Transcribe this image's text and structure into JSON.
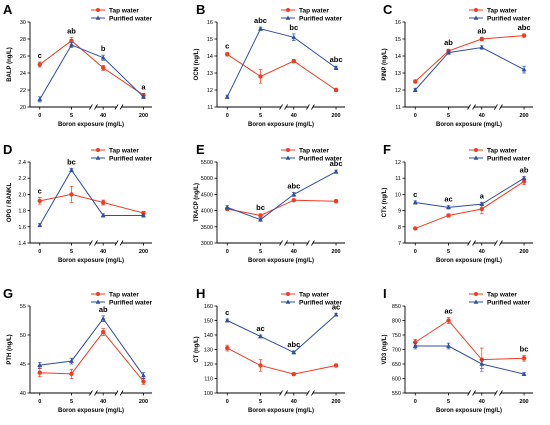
{
  "legend": {
    "tap": "Tap water",
    "purified": "Purified water"
  },
  "colors": {
    "tap": "#f03c22",
    "purified": "#2e4fa3",
    "axis": "#000000"
  },
  "chart_data": [
    {
      "type": "line",
      "panel": "A",
      "ylabel": "BALP (ng/L)",
      "xlabel": "Boron exposure (mg/L)",
      "categories": [
        "0",
        "5",
        "40",
        "200"
      ],
      "ylim": [
        20,
        30
      ],
      "yticks": [
        "20",
        "22",
        "24",
        "26",
        "28",
        "30"
      ],
      "series": [
        {
          "name": "Tap water",
          "values": [
            25,
            27.8,
            24.6,
            21.4
          ],
          "err": [
            0.3,
            0.4,
            0.3,
            0.2
          ],
          "marker": "circle"
        },
        {
          "name": "Purified water",
          "values": [
            20.9,
            27.3,
            25.8,
            21.2
          ],
          "err": [
            0.3,
            0.3,
            0.3,
            0.2
          ],
          "marker": "triangle"
        }
      ],
      "annotations": [
        {
          "index": 0,
          "text": "c"
        },
        {
          "index": 1,
          "text": "ab"
        },
        {
          "index": 2,
          "text": "b"
        },
        {
          "index": 3,
          "text": "a"
        }
      ]
    },
    {
      "type": "line",
      "panel": "B",
      "ylabel": "OCN (ng/L)",
      "xlabel": "Boron exposure (mg/L)",
      "categories": [
        "0",
        "5",
        "40",
        "200"
      ],
      "ylim": [
        11,
        16
      ],
      "yticks": [
        "11",
        "12",
        "13",
        "14",
        "15",
        "16"
      ],
      "series": [
        {
          "name": "Tap water",
          "values": [
            14.1,
            12.8,
            13.7,
            12.0
          ],
          "err": [
            0.1,
            0.4,
            0.1,
            0.1
          ],
          "marker": "circle"
        },
        {
          "name": "Purified water",
          "values": [
            11.6,
            15.6,
            15.1,
            13.3
          ],
          "err": [
            0.1,
            0.1,
            0.2,
            0.1
          ],
          "marker": "triangle"
        }
      ],
      "annotations": [
        {
          "index": 0,
          "text": "c"
        },
        {
          "index": 1,
          "text": "abc"
        },
        {
          "index": 2,
          "text": "bc"
        },
        {
          "index": 3,
          "text": "abc"
        }
      ]
    },
    {
      "type": "line",
      "panel": "C",
      "ylabel": "PINP (ng/L)",
      "xlabel": "Boron exposure (mg/L)",
      "categories": [
        "0",
        "5",
        "40",
        "200"
      ],
      "ylim": [
        11,
        16
      ],
      "yticks": [
        "11",
        "12",
        "13",
        "14",
        "15",
        "16"
      ],
      "series": [
        {
          "name": "Tap water",
          "values": [
            12.5,
            14.3,
            15.0,
            15.2
          ],
          "err": [
            0.1,
            0.1,
            0.1,
            0.1
          ],
          "marker": "circle"
        },
        {
          "name": "Purified water",
          "values": [
            12.0,
            14.2,
            14.5,
            13.2
          ],
          "err": [
            0.1,
            0.1,
            0.1,
            0.2
          ],
          "marker": "triangle"
        }
      ],
      "annotations": [
        {
          "index": 1,
          "text": "ab"
        },
        {
          "index": 2,
          "text": "ab"
        },
        {
          "index": 3,
          "text": "abc"
        }
      ]
    },
    {
      "type": "line",
      "panel": "D",
      "ylabel": "OPG / RANKL",
      "xlabel": "Boron exposure (mg/L)",
      "categories": [
        "0",
        "5",
        "40",
        "200"
      ],
      "ylim": [
        1.4,
        2.4
      ],
      "yticks": [
        "1.4",
        "1.6",
        "1.8",
        "2.0",
        "2.2",
        "2.4"
      ],
      "series": [
        {
          "name": "Tap water",
          "values": [
            1.92,
            2.0,
            1.9,
            1.77
          ],
          "err": [
            0.04,
            0.1,
            0.03,
            0.02
          ],
          "marker": "circle"
        },
        {
          "name": "Purified water",
          "values": [
            1.62,
            2.3,
            1.74,
            1.74
          ],
          "err": [
            0.02,
            0.02,
            0.02,
            0.02
          ],
          "marker": "triangle"
        }
      ],
      "annotations": [
        {
          "index": 0,
          "text": "c"
        },
        {
          "index": 1,
          "text": "bc"
        }
      ]
    },
    {
      "type": "line",
      "panel": "E",
      "ylabel": "TRACP (ng/L)",
      "xlabel": "Boron exposure (mg/L)",
      "categories": [
        "0",
        "5",
        "40",
        "200"
      ],
      "ylim": [
        3000,
        5500
      ],
      "yticks": [
        "3000",
        "3500",
        "4000",
        "4500",
        "5000",
        "5500"
      ],
      "series": [
        {
          "name": "Tap water",
          "values": [
            4050,
            3850,
            4320,
            4290
          ],
          "err": [
            50,
            50,
            40,
            50
          ],
          "marker": "circle"
        },
        {
          "name": "Purified water",
          "values": [
            4100,
            3720,
            4500,
            5200
          ],
          "err": [
            50,
            50,
            60,
            50
          ],
          "marker": "triangle"
        }
      ],
      "annotations": [
        {
          "index": 1,
          "text": "bc"
        },
        {
          "index": 2,
          "text": "abc"
        },
        {
          "index": 3,
          "text": "abc"
        }
      ]
    },
    {
      "type": "line",
      "panel": "F",
      "ylabel": "CTx (ng/L)",
      "xlabel": "Boron exposure (mg/L)",
      "categories": [
        "0",
        "5",
        "40",
        "200"
      ],
      "ylim": [
        7,
        12
      ],
      "yticks": [
        "7",
        "8",
        "9",
        "10",
        "11",
        "12"
      ],
      "series": [
        {
          "name": "Tap water",
          "values": [
            7.9,
            8.7,
            9.1,
            10.8
          ],
          "err": [
            0.05,
            0.1,
            0.3,
            0.2
          ],
          "marker": "circle"
        },
        {
          "name": "Purified water",
          "values": [
            9.5,
            9.2,
            9.4,
            11.0
          ],
          "err": [
            0.1,
            0.1,
            0.1,
            0.1
          ],
          "marker": "triangle"
        }
      ],
      "annotations": [
        {
          "index": 0,
          "text": "c"
        },
        {
          "index": 1,
          "text": "ac"
        },
        {
          "index": 2,
          "text": "a"
        },
        {
          "index": 3,
          "text": "ab"
        }
      ]
    },
    {
      "type": "line",
      "panel": "G",
      "ylabel": "PTH (ng/L)",
      "xlabel": "Boron exposure (mg/L)",
      "categories": [
        "0",
        "5",
        "40",
        "200"
      ],
      "ylim": [
        40,
        55
      ],
      "yticks": [
        "40",
        "45",
        "50",
        "55"
      ],
      "series": [
        {
          "name": "Tap water",
          "values": [
            43.5,
            43.3,
            50.5,
            42.0
          ],
          "err": [
            0.7,
            0.8,
            0.6,
            0.5
          ],
          "marker": "circle"
        },
        {
          "name": "Purified water",
          "values": [
            44.8,
            45.5,
            52.8,
            43.0
          ],
          "err": [
            0.5,
            0.5,
            0.5,
            0.5
          ],
          "marker": "triangle"
        }
      ],
      "annotations": [
        {
          "index": 2,
          "text": "ab"
        }
      ]
    },
    {
      "type": "line",
      "panel": "H",
      "ylabel": "CT (ng/L)",
      "xlabel": "Boron exposure (mg/L)",
      "categories": [
        "0",
        "5",
        "40",
        "200"
      ],
      "ylim": [
        100,
        160
      ],
      "yticks": [
        "100",
        "110",
        "120",
        "130",
        "140",
        "150",
        "160"
      ],
      "series": [
        {
          "name": "Tap water",
          "values": [
            131,
            119,
            113,
            119
          ],
          "err": [
            2,
            4,
            1,
            1
          ],
          "marker": "circle"
        },
        {
          "name": "Purified water",
          "values": [
            150,
            139,
            128,
            154
          ],
          "err": [
            1,
            1,
            1,
            1
          ],
          "marker": "triangle"
        }
      ],
      "annotations": [
        {
          "index": 0,
          "text": "c"
        },
        {
          "index": 1,
          "text": "ac"
        },
        {
          "index": 2,
          "text": "abc"
        },
        {
          "index": 3,
          "text": "ac"
        }
      ]
    },
    {
      "type": "line",
      "panel": "I",
      "ylabel": "VD3 (ng/L)",
      "xlabel": "Boron exposure (mg/L)",
      "categories": [
        "0",
        "5",
        "40",
        "200"
      ],
      "ylim": [
        550,
        850
      ],
      "yticks": [
        "550",
        "600",
        "650",
        "700",
        "750",
        "800",
        "850"
      ],
      "series": [
        {
          "name": "Tap water",
          "values": [
            725,
            800,
            665,
            670
          ],
          "err": [
            10,
            10,
            40,
            10
          ],
          "marker": "circle"
        },
        {
          "name": "Purified water",
          "values": [
            712,
            712,
            650,
            615
          ],
          "err": [
            10,
            10,
            15,
            5
          ],
          "marker": "triangle"
        }
      ],
      "annotations": [
        {
          "index": 1,
          "text": "ac"
        },
        {
          "index": 3,
          "text": "bc"
        }
      ]
    }
  ]
}
